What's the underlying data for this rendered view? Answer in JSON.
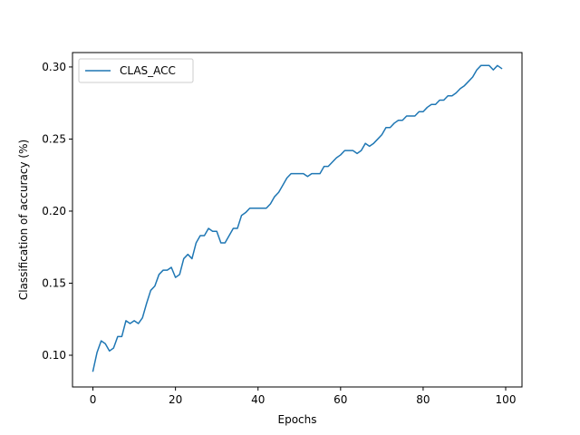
{
  "chart_data": {
    "type": "line",
    "title": "",
    "xlabel": "Epochs",
    "ylabel": "Classification of accuracy (%)",
    "xlim": [
      -4.95,
      103.95
    ],
    "ylim": [
      0.078,
      0.31
    ],
    "xticks": [
      0,
      20,
      40,
      60,
      80,
      100
    ],
    "xtick_labels": [
      "0",
      "20",
      "40",
      "60",
      "80",
      "100"
    ],
    "yticks": [
      0.1,
      0.15,
      0.2,
      0.25,
      0.3
    ],
    "ytick_labels": [
      "0.10",
      "0.15",
      "0.20",
      "0.25",
      "0.30"
    ],
    "grid": false,
    "legend": {
      "position": "top-left",
      "entries": [
        "CLAS_ACC"
      ]
    },
    "series": [
      {
        "name": "CLAS_ACC",
        "color": "#1f77b4",
        "x": [
          0,
          1,
          2,
          3,
          4,
          5,
          6,
          7,
          8,
          9,
          10,
          11,
          12,
          13,
          14,
          15,
          16,
          17,
          18,
          19,
          20,
          21,
          22,
          23,
          24,
          25,
          26,
          27,
          28,
          29,
          30,
          31,
          32,
          33,
          34,
          35,
          36,
          37,
          38,
          39,
          40,
          41,
          42,
          43,
          44,
          45,
          46,
          47,
          48,
          49,
          50,
          51,
          52,
          53,
          54,
          55,
          56,
          57,
          58,
          59,
          60,
          61,
          62,
          63,
          64,
          65,
          66,
          67,
          68,
          69,
          70,
          71,
          72,
          73,
          74,
          75,
          76,
          77,
          78,
          79,
          80,
          81,
          82,
          83,
          84,
          85,
          86,
          87,
          88,
          89,
          90,
          91,
          92,
          93,
          94,
          95,
          96,
          97,
          98,
          99
        ],
        "values": [
          0.089,
          0.102,
          0.11,
          0.108,
          0.103,
          0.105,
          0.113,
          0.113,
          0.124,
          0.122,
          0.124,
          0.122,
          0.126,
          0.136,
          0.145,
          0.148,
          0.156,
          0.159,
          0.159,
          0.161,
          0.154,
          0.156,
          0.167,
          0.17,
          0.167,
          0.178,
          0.183,
          0.183,
          0.188,
          0.186,
          0.186,
          0.178,
          0.178,
          0.183,
          0.188,
          0.188,
          0.197,
          0.199,
          0.202,
          0.202,
          0.202,
          0.202,
          0.202,
          0.205,
          0.21,
          0.213,
          0.218,
          0.223,
          0.226,
          0.226,
          0.226,
          0.226,
          0.224,
          0.226,
          0.226,
          0.226,
          0.231,
          0.231,
          0.234,
          0.237,
          0.239,
          0.242,
          0.242,
          0.242,
          0.24,
          0.242,
          0.247,
          0.245,
          0.247,
          0.25,
          0.253,
          0.258,
          0.258,
          0.261,
          0.263,
          0.263,
          0.266,
          0.266,
          0.266,
          0.269,
          0.269,
          0.272,
          0.274,
          0.274,
          0.277,
          0.277,
          0.28,
          0.28,
          0.282,
          0.285,
          0.287,
          0.29,
          0.293,
          0.298,
          0.301,
          0.301,
          0.301,
          0.298,
          0.301,
          0.299
        ]
      }
    ]
  }
}
